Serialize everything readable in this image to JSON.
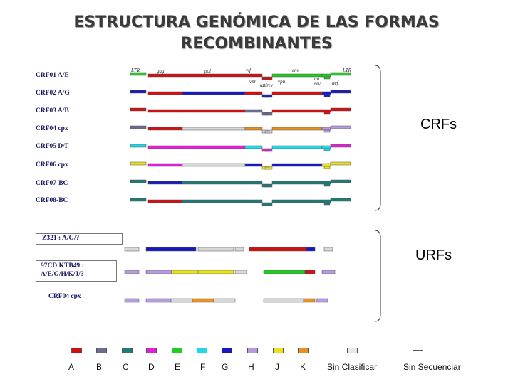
{
  "title": {
    "line1": "ESTRUCTURA GENÓMICA DE LAS FORMAS",
    "line2": "RECOMBINANTES"
  },
  "colors": {
    "A": "#d01010",
    "B": "#6c6c90",
    "C": "#1f7a7a",
    "D": "#e020d8",
    "E": "#22cc22",
    "F": "#22d8e8",
    "G": "#1818c0",
    "H": "#b89ae0",
    "J": "#e8e020",
    "K": "#e89020",
    "unclassified": "#e8e8e8",
    "unsequenced": "#ffffff"
  },
  "crf_rows": [
    {
      "label": "CRF01 A/E",
      "colors": [
        "E",
        "A",
        "A",
        "A",
        "A",
        "E",
        "E",
        "E"
      ]
    },
    {
      "label": "CRF02 A/G",
      "colors": [
        "G",
        "A",
        "G",
        "A",
        "G",
        "A",
        "G",
        "G"
      ]
    },
    {
      "label": "CRF03 A/B",
      "colors": [
        "A",
        "A",
        "A",
        "B",
        "B",
        "A",
        "A",
        "A"
      ]
    },
    {
      "label": "CRF04 cpx",
      "colors": [
        "B",
        "A",
        "U",
        "K",
        "U",
        "K",
        "H",
        "H"
      ]
    },
    {
      "label": "CRF05 D/F",
      "colors": [
        "F",
        "D",
        "D",
        "F",
        "D",
        "F",
        "F",
        "D"
      ]
    },
    {
      "label": "CRF06 cpx",
      "colors": [
        "J",
        "D",
        "U",
        "G",
        "J",
        "G",
        "J",
        "J"
      ]
    },
    {
      "label": "CRF07-BC",
      "colors": [
        "C",
        "G",
        "C",
        "C",
        "C",
        "C",
        "C",
        "C"
      ]
    },
    {
      "label": "CRF08-BC",
      "colors": [
        "C",
        "A",
        "C",
        "C",
        "C",
        "C",
        "C",
        "C"
      ]
    }
  ],
  "gene_labels": [
    "LTR",
    "gag",
    "pol",
    "vif",
    "env",
    "LTR",
    "vpr",
    "tat/rev",
    "vpu",
    "tat",
    "rev",
    "nef"
  ],
  "big_tags": {
    "crfs": "CRFs",
    "urfs": "URFs"
  },
  "urf_rows": [
    {
      "label": "Z321 : A/G/?"
    },
    {
      "label_line1": "97CD.KTB49 :",
      "label_line2": "A/E/G/H/K/J/?"
    },
    {
      "label": "CRF04 cpx"
    }
  ],
  "legend": [
    {
      "key": "A",
      "label": "A"
    },
    {
      "key": "B",
      "label": "B"
    },
    {
      "key": "C",
      "label": "C"
    },
    {
      "key": "D",
      "label": "D"
    },
    {
      "key": "E",
      "label": "E"
    },
    {
      "key": "F",
      "label": "F"
    },
    {
      "key": "G",
      "label": "G"
    },
    {
      "key": "H",
      "label": "H"
    },
    {
      "key": "J",
      "label": "J"
    },
    {
      "key": "K",
      "label": "K"
    },
    {
      "key": "unclassified",
      "label": "Sin Clasificar"
    },
    {
      "key": "unsequenced",
      "label": "Sin Secuenciar"
    }
  ]
}
